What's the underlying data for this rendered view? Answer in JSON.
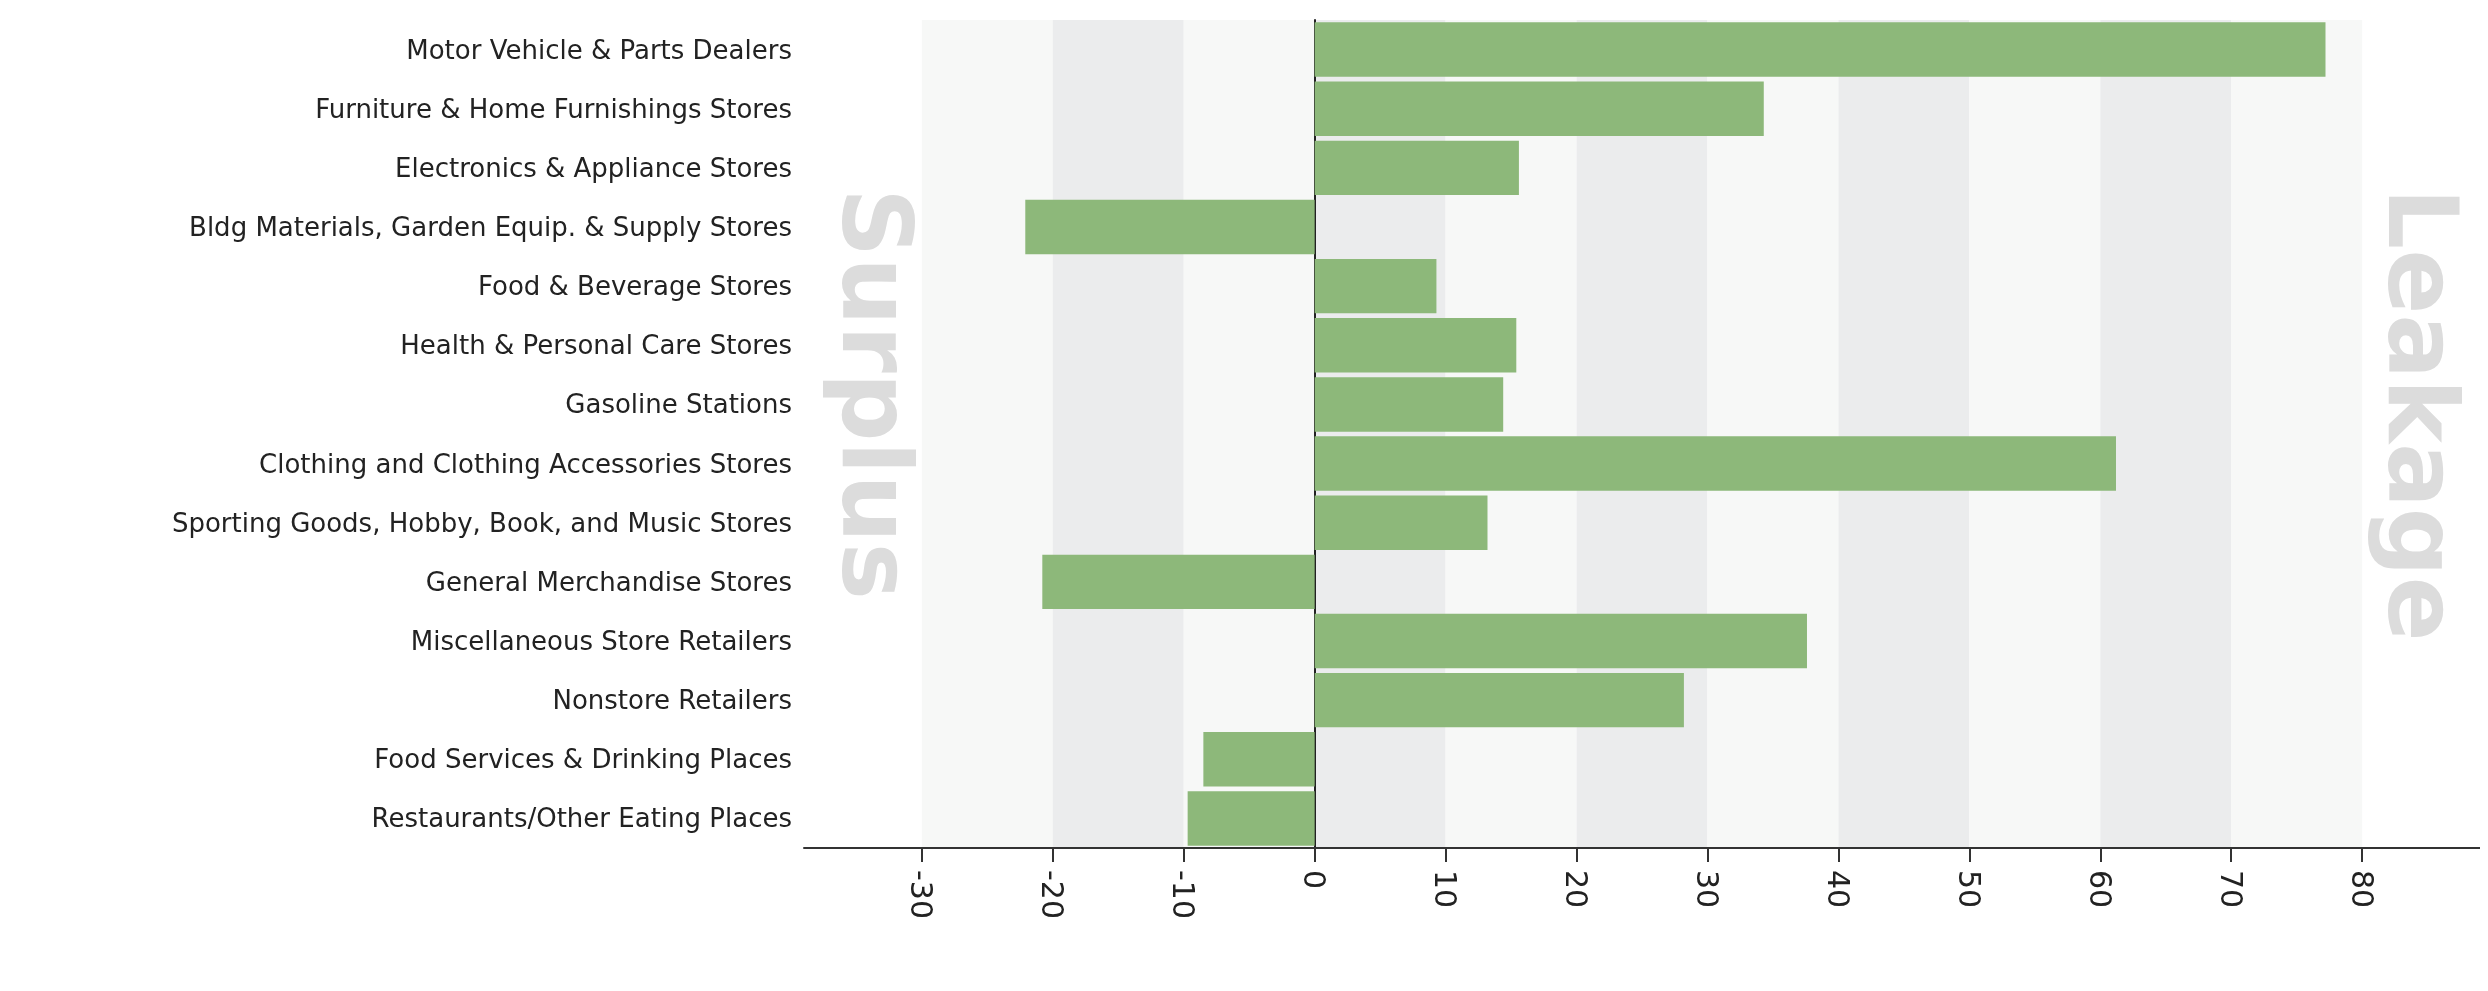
{
  "chart_data": {
    "type": "bar",
    "orientation": "horizontal",
    "categories": [
      "Motor Vehicle & Parts Dealers",
      "Furniture & Home Furnishings Stores",
      "Electronics & Appliance Stores",
      "Bldg Materials, Garden Equip. & Supply Stores",
      "Food & Beverage Stores",
      "Health & Personal Care Stores",
      "Gasoline Stations",
      "Clothing and Clothing Accessories Stores",
      "Sporting Goods, Hobby, Book, and Music Stores",
      "General Merchandise Stores",
      "Miscellaneous Store Retailers",
      "Nonstore Retailers",
      "Food Services & Drinking Places",
      "Restaurants/Other Eating Places"
    ],
    "values": [
      77.2,
      34.3,
      15.6,
      -22.1,
      9.3,
      15.4,
      14.4,
      61.2,
      13.2,
      -20.8,
      37.6,
      28.2,
      -8.5,
      -9.7
    ],
    "color": "#8db87a",
    "xlim": [
      -39,
      89
    ],
    "xticks": [
      -30,
      -20,
      -10,
      0,
      10,
      20,
      30,
      40,
      50,
      60,
      70,
      80
    ],
    "grid": "x",
    "annotations": [
      "Surplus",
      "Leakage"
    ]
  }
}
